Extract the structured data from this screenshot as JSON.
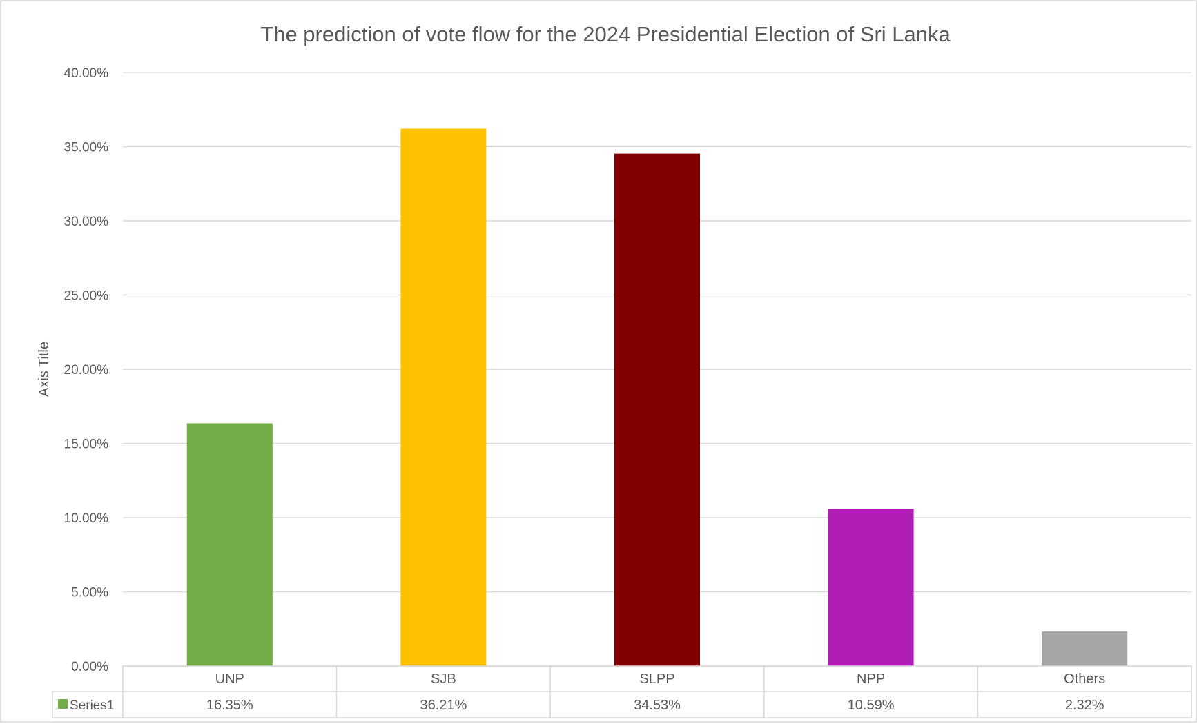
{
  "chart_data": {
    "type": "bar",
    "title": "The prediction of vote flow for the 2024 Presidential Election of Sri Lanka",
    "xlabel": "",
    "ylabel": "Axis Title",
    "ylim": [
      0,
      0.4
    ],
    "y_tick_labels": [
      "0.00%",
      "5.00%",
      "10.00%",
      "15.00%",
      "20.00%",
      "25.00%",
      "30.00%",
      "35.00%",
      "40.00%"
    ],
    "grid": true,
    "categories": [
      "UNP",
      "SJB",
      "SLPP",
      "NPP",
      "Others"
    ],
    "series": [
      {
        "name": "Series1",
        "legend_color": "#70AD47",
        "values": [
          0.1635,
          0.3621,
          0.3453,
          0.1059,
          0.0232
        ],
        "value_labels": [
          "16.35%",
          "36.21%",
          "34.53%",
          "10.59%",
          "2.32%"
        ],
        "bar_colors": [
          "#70AD47",
          "#FFC000",
          "#800000",
          "#B01EB5",
          "#A5A5A5"
        ]
      }
    ],
    "legend": "data-table"
  }
}
